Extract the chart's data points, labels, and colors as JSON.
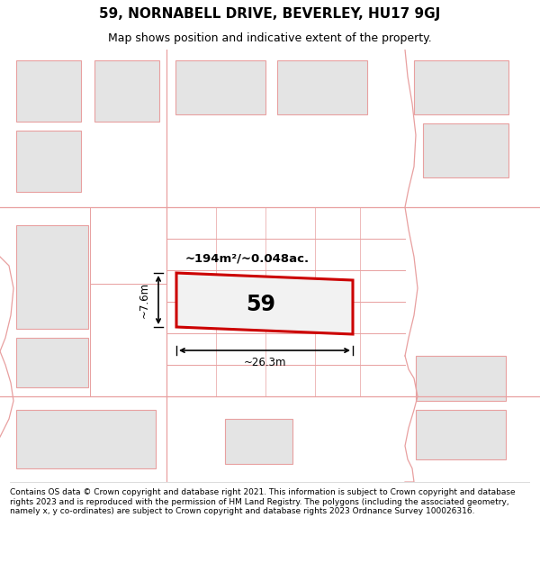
{
  "title_line1": "59, NORNABELL DRIVE, BEVERLEY, HU17 9GJ",
  "title_line2": "Map shows position and indicative extent of the property.",
  "footer_text": "Contains OS data © Crown copyright and database right 2021. This information is subject to Crown copyright and database rights 2023 and is reproduced with the permission of HM Land Registry. The polygons (including the associated geometry, namely x, y co-ordinates) are subject to Crown copyright and database rights 2023 Ordnance Survey 100026316.",
  "map_bg": "#f8f8f8",
  "block_fill": "#e4e4e4",
  "block_stroke": "#e8a0a0",
  "highlight_fill": "#f2f2f2",
  "highlight_stroke": "#cc0000",
  "dim_color": "#111111",
  "area_label": "~194m²/~0.048ac.",
  "plot_label": "59",
  "width_label": "~26.3m",
  "height_label": "~7.6m",
  "title_fontsize": 11,
  "subtitle_fontsize": 9,
  "footer_fontsize": 6.5
}
